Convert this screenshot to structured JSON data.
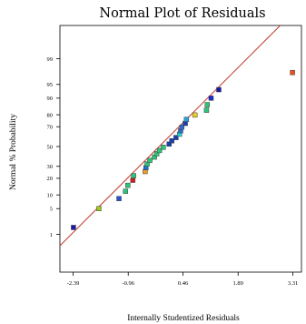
{
  "chart_data": {
    "type": "scatter",
    "title": "Normal Plot of Residuals",
    "xlabel": "Internally Studentized Residuals",
    "ylabel": "Normal % Probability",
    "x_ticks": [
      {
        "value": -2.39,
        "label": "-2.39"
      },
      {
        "value": -0.96,
        "label": "-0.96"
      },
      {
        "value": 0.46,
        "label": "0.46"
      },
      {
        "value": 1.89,
        "label": "1.89"
      },
      {
        "value": 3.31,
        "label": "3.31"
      }
    ],
    "y_ticks": [
      {
        "value": 1,
        "label": "1"
      },
      {
        "value": 5,
        "label": "5"
      },
      {
        "value": 10,
        "label": "10"
      },
      {
        "value": 20,
        "label": "20"
      },
      {
        "value": 30,
        "label": "30"
      },
      {
        "value": 50,
        "label": "50"
      },
      {
        "value": 70,
        "label": "70"
      },
      {
        "value": 80,
        "label": "80"
      },
      {
        "value": 90,
        "label": "90"
      },
      {
        "value": 95,
        "label": "95"
      },
      {
        "value": 99,
        "label": "99"
      }
    ],
    "xlim": [
      -2.85,
      3.31
    ],
    "y_scale": "normal-probability",
    "grid": false,
    "fit_line": {
      "x": [
        -2.85,
        3.31
      ],
      "y": [
        0.3,
        99.98
      ],
      "color": "#c0392b"
    },
    "points": [
      {
        "x": -2.38,
        "y": 1.6,
        "color": "#1a1aa6"
      },
      {
        "x": -1.72,
        "y": 5,
        "color": "#9ccc1a"
      },
      {
        "x": -1.2,
        "y": 8.4,
        "color": "#2a4fcf"
      },
      {
        "x": -1.03,
        "y": 11.8,
        "color": "#2ec47a"
      },
      {
        "x": -0.97,
        "y": 15.2,
        "color": "#2ec47a"
      },
      {
        "x": -0.84,
        "y": 18.6,
        "color": "#cc2020"
      },
      {
        "x": -0.82,
        "y": 22,
        "color": "#2ec47a"
      },
      {
        "x": -0.52,
        "y": 25.4,
        "color": "#f0a020"
      },
      {
        "x": -0.5,
        "y": 28.8,
        "color": "#1f6fd0"
      },
      {
        "x": -0.47,
        "y": 32.2,
        "color": "#2ec47a"
      },
      {
        "x": -0.4,
        "y": 35.6,
        "color": "#2ec47a"
      },
      {
        "x": -0.28,
        "y": 39,
        "color": "#2ec47a"
      },
      {
        "x": -0.22,
        "y": 42.4,
        "color": "#2ec47a"
      },
      {
        "x": -0.15,
        "y": 45.8,
        "color": "#2ec47a"
      },
      {
        "x": -0.05,
        "y": 49.2,
        "color": "#2ec47a"
      },
      {
        "x": 0.1,
        "y": 52.6,
        "color": "#1a3fb0"
      },
      {
        "x": 0.17,
        "y": 56,
        "color": "#1a3fb0"
      },
      {
        "x": 0.28,
        "y": 59.4,
        "color": "#1a3fb0"
      },
      {
        "x": 0.37,
        "y": 62.8,
        "color": "#2ad0d0"
      },
      {
        "x": 0.4,
        "y": 66.2,
        "color": "#2a6fd0"
      },
      {
        "x": 0.43,
        "y": 69.6,
        "color": "#2a6fd0"
      },
      {
        "x": 0.52,
        "y": 73,
        "color": "#1a3fb0"
      },
      {
        "x": 0.55,
        "y": 76.4,
        "color": "#2a9fe0"
      },
      {
        "x": 0.77,
        "y": 79.8,
        "color": "#e8d020"
      },
      {
        "x": 1.07,
        "y": 83.2,
        "color": "#2ec47a"
      },
      {
        "x": 1.09,
        "y": 86.6,
        "color": "#2ec47a"
      },
      {
        "x": 1.19,
        "y": 90,
        "color": "#1a2ad0"
      },
      {
        "x": 1.39,
        "y": 93.4,
        "color": "#1a1aa6"
      },
      {
        "x": 3.3,
        "y": 97.5,
        "color": "#e85020"
      }
    ]
  }
}
